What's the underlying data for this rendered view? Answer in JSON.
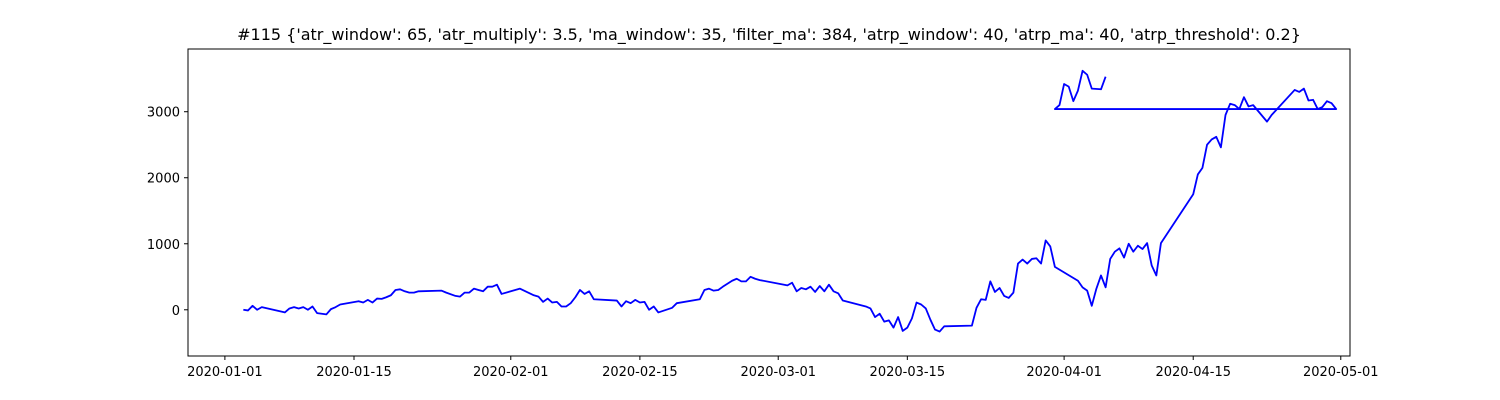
{
  "chart_data": {
    "type": "line",
    "title": "#115 {'atr_window': 65, 'atr_multiply': 3.5, 'ma_window': 35, 'filter_ma': 384, 'atrp_window': 40, 'atrp_ma': 40, 'atrp_threshold': 0.2}",
    "xlabel": "",
    "ylabel": "",
    "x_scale": "date",
    "xlim": [
      "2019-12-28",
      "2020-05-02"
    ],
    "ylim": [
      -700,
      3950
    ],
    "x_ticks": [
      "2020-01-01",
      "2020-01-15",
      "2020-02-01",
      "2020-02-15",
      "2020-03-01",
      "2020-03-15",
      "2020-04-01",
      "2020-04-15",
      "2020-05-01"
    ],
    "y_ticks": [
      0,
      1000,
      2000,
      3000
    ],
    "grid": false,
    "legend": "none",
    "series": [
      {
        "color": "#0000ff",
        "points": [
          [
            "2020-01-03",
            0
          ],
          [
            "2020-01-03 12:00",
            -10
          ],
          [
            "2020-01-04",
            60
          ],
          [
            "2020-01-04 12:00",
            0
          ],
          [
            "2020-01-05",
            40
          ],
          [
            "2020-01-07 12:00",
            -40
          ],
          [
            "2020-01-08",
            20
          ],
          [
            "2020-01-08 12:00",
            40
          ],
          [
            "2020-01-09",
            20
          ],
          [
            "2020-01-09 12:00",
            40
          ],
          [
            "2020-01-10",
            0
          ],
          [
            "2020-01-10 12:00",
            50
          ],
          [
            "2020-01-11",
            -50
          ],
          [
            "2020-01-12",
            -70
          ],
          [
            "2020-01-12 12:00",
            10
          ],
          [
            "2020-01-13",
            40
          ],
          [
            "2020-01-13 12:00",
            80
          ],
          [
            "2020-01-15 12:00",
            130
          ],
          [
            "2020-01-16",
            110
          ],
          [
            "2020-01-16 12:00",
            150
          ],
          [
            "2020-01-17",
            110
          ],
          [
            "2020-01-17 12:00",
            170
          ],
          [
            "2020-01-18",
            165
          ],
          [
            "2020-01-18 12:00",
            190
          ],
          [
            "2020-01-19",
            220
          ],
          [
            "2020-01-19 12:00",
            300
          ],
          [
            "2020-01-20",
            310
          ],
          [
            "2020-01-20 12:00",
            280
          ],
          [
            "2020-01-21",
            260
          ],
          [
            "2020-01-21 12:00",
            260
          ],
          [
            "2020-01-22",
            280
          ],
          [
            "2020-01-24 12:00",
            290
          ],
          [
            "2020-01-25",
            260
          ],
          [
            "2020-01-26",
            210
          ],
          [
            "2020-01-26 12:00",
            200
          ],
          [
            "2020-01-27",
            260
          ],
          [
            "2020-01-27 12:00",
            260
          ],
          [
            "2020-01-28",
            320
          ],
          [
            "2020-01-28 12:00",
            300
          ],
          [
            "2020-01-29",
            280
          ],
          [
            "2020-01-29 12:00",
            350
          ],
          [
            "2020-01-30",
            350
          ],
          [
            "2020-01-30 12:00",
            380
          ],
          [
            "2020-01-31",
            240
          ],
          [
            "2020-02-02",
            320
          ],
          [
            "2020-02-03 12:00",
            220
          ],
          [
            "2020-02-04",
            200
          ],
          [
            "2020-02-04 12:00",
            120
          ],
          [
            "2020-02-05",
            170
          ],
          [
            "2020-02-05 12:00",
            110
          ],
          [
            "2020-02-06",
            120
          ],
          [
            "2020-02-06 12:00",
            50
          ],
          [
            "2020-02-07",
            50
          ],
          [
            "2020-02-07 12:00",
            100
          ],
          [
            "2020-02-08",
            190
          ],
          [
            "2020-02-08 12:00",
            300
          ],
          [
            "2020-02-09",
            240
          ],
          [
            "2020-02-09 12:00",
            280
          ],
          [
            "2020-02-10",
            160
          ],
          [
            "2020-02-12 12:00",
            140
          ],
          [
            "2020-02-13",
            50
          ],
          [
            "2020-02-13 12:00",
            130
          ],
          [
            "2020-02-14",
            100
          ],
          [
            "2020-02-14 12:00",
            150
          ],
          [
            "2020-02-15",
            110
          ],
          [
            "2020-02-15 12:00",
            120
          ],
          [
            "2020-02-16",
            0
          ],
          [
            "2020-02-16 12:00",
            50
          ],
          [
            "2020-02-17",
            -40
          ],
          [
            "2020-02-18 12:00",
            30
          ],
          [
            "2020-02-19",
            100
          ],
          [
            "2020-02-21 12:00",
            160
          ],
          [
            "2020-02-22",
            300
          ],
          [
            "2020-02-22 12:00",
            320
          ],
          [
            "2020-02-23",
            290
          ],
          [
            "2020-02-23 12:00",
            300
          ],
          [
            "2020-02-24",
            350
          ],
          [
            "2020-02-25",
            440
          ],
          [
            "2020-02-25 12:00",
            470
          ],
          [
            "2020-02-26",
            430
          ],
          [
            "2020-02-26 12:00",
            430
          ],
          [
            "2020-02-27",
            500
          ],
          [
            "2020-02-27 12:00",
            470
          ],
          [
            "2020-02-28",
            450
          ],
          [
            "2020-03-02",
            370
          ],
          [
            "2020-03-02 12:00",
            410
          ],
          [
            "2020-03-03",
            280
          ],
          [
            "2020-03-03 12:00",
            330
          ],
          [
            "2020-03-04",
            310
          ],
          [
            "2020-03-04 12:00",
            350
          ],
          [
            "2020-03-05",
            270
          ],
          [
            "2020-03-05 12:00",
            360
          ],
          [
            "2020-03-06",
            280
          ],
          [
            "2020-03-06 12:00",
            380
          ],
          [
            "2020-03-07",
            280
          ],
          [
            "2020-03-07 12:00",
            250
          ],
          [
            "2020-03-08",
            140
          ],
          [
            "2020-03-10 12:00",
            50
          ],
          [
            "2020-03-11",
            20
          ],
          [
            "2020-03-11 12:00",
            -110
          ],
          [
            "2020-03-12",
            -60
          ],
          [
            "2020-03-12 12:00",
            -180
          ],
          [
            "2020-03-13",
            -160
          ],
          [
            "2020-03-13 12:00",
            -270
          ],
          [
            "2020-03-14",
            -110
          ],
          [
            "2020-03-14 12:00",
            -320
          ],
          [
            "2020-03-15",
            -270
          ],
          [
            "2020-03-15 12:00",
            -130
          ],
          [
            "2020-03-16",
            110
          ],
          [
            "2020-03-16 12:00",
            80
          ],
          [
            "2020-03-17",
            20
          ],
          [
            "2020-03-17 12:00",
            -150
          ],
          [
            "2020-03-18",
            -300
          ],
          [
            "2020-03-18 12:00",
            -330
          ],
          [
            "2020-03-19",
            -250
          ],
          [
            "2020-03-22",
            -240
          ],
          [
            "2020-03-22 12:00",
            30
          ],
          [
            "2020-03-23",
            160
          ],
          [
            "2020-03-23 12:00",
            150
          ],
          [
            "2020-03-24",
            430
          ],
          [
            "2020-03-24 12:00",
            270
          ],
          [
            "2020-03-25",
            330
          ],
          [
            "2020-03-25 12:00",
            210
          ],
          [
            "2020-03-26",
            180
          ],
          [
            "2020-03-26 12:00",
            260
          ],
          [
            "2020-03-27",
            700
          ],
          [
            "2020-03-27 12:00",
            760
          ],
          [
            "2020-03-28",
            700
          ],
          [
            "2020-03-28 12:00",
            770
          ],
          [
            "2020-03-29",
            780
          ],
          [
            "2020-03-29 12:00",
            700
          ],
          [
            "2020-03-30",
            1050
          ],
          [
            "2020-03-30 12:00",
            960
          ],
          [
            "2020-03-31",
            650
          ],
          [
            "2020-04-02 12:00",
            440
          ],
          [
            "2020-04-03",
            340
          ],
          [
            "2020-04-03 12:00",
            290
          ],
          [
            "2020-04-04",
            60
          ],
          [
            "2020-04-04 12:00",
            320
          ],
          [
            "2020-04-05",
            520
          ],
          [
            "2020-04-05 12:00",
            340
          ],
          [
            "2020-04-06",
            770
          ],
          [
            "2020-04-06 12:00",
            880
          ],
          [
            "2020-04-07",
            930
          ],
          [
            "2020-04-07 12:00",
            790
          ],
          [
            "2020-04-08",
            1000
          ],
          [
            "2020-04-08 12:00",
            880
          ],
          [
            "2020-04-09",
            970
          ],
          [
            "2020-04-09 12:00",
            920
          ],
          [
            "2020-04-10",
            1010
          ],
          [
            "2020-04-10 12:00",
            670
          ],
          [
            "2020-04-11",
            520
          ],
          [
            "2020-04-11 12:00",
            1010
          ],
          [
            "2020-04-15",
            1750
          ],
          [
            "2020-04-15 12:00",
            2050
          ],
          [
            "2020-04-16",
            2150
          ],
          [
            "2020-04-16 12:00",
            2500
          ],
          [
            "2020-04-17",
            2580
          ],
          [
            "2020-04-17 12:00",
            2620
          ],
          [
            "2020-04-18",
            2460
          ],
          [
            "2020-04-18 12:00",
            2950
          ],
          [
            "2020-04-19",
            3120
          ],
          [
            "2020-04-19 12:00",
            3100
          ],
          [
            "2020-04-20",
            3040
          ],
          [
            "2020-04-20 12:00",
            3220
          ],
          [
            "2020-04-21",
            3080
          ],
          [
            "2020-04-21 12:00",
            3100
          ],
          [
            "2020-04-23",
            2850
          ],
          [
            "2020-04-23 12:00",
            2950
          ],
          [
            "2020-04-26",
            3330
          ],
          [
            "2020-04-26 12:00",
            3300
          ],
          [
            "2020-04-27",
            3350
          ],
          [
            "2020-04-27 12:00",
            3170
          ],
          [
            "2020-04-28",
            3180
          ],
          [
            "2020-04-28 12:00",
            3040
          ],
          [
            "2020-04-29",
            3070
          ],
          [
            "2020-04-29 12:00",
            3160
          ],
          [
            "2020-04-30",
            3130
          ],
          [
            "2020-04-30 12:00",
            3040
          ],
          [
            "2020-03-31",
            3040
          ],
          [
            "2020-03-31 12:00",
            3100
          ],
          [
            "2020-04-01",
            3420
          ],
          [
            "2020-04-01 12:00",
            3380
          ],
          [
            "2020-04-02",
            3160
          ],
          [
            "2020-04-02 12:00",
            3320
          ],
          [
            "2020-04-03",
            3620
          ],
          [
            "2020-04-03 12:00",
            3560
          ],
          [
            "2020-04-04",
            3350
          ],
          [
            "2020-04-05",
            3340
          ],
          [
            "2020-04-05 12:00",
            3530
          ]
        ]
      }
    ]
  }
}
